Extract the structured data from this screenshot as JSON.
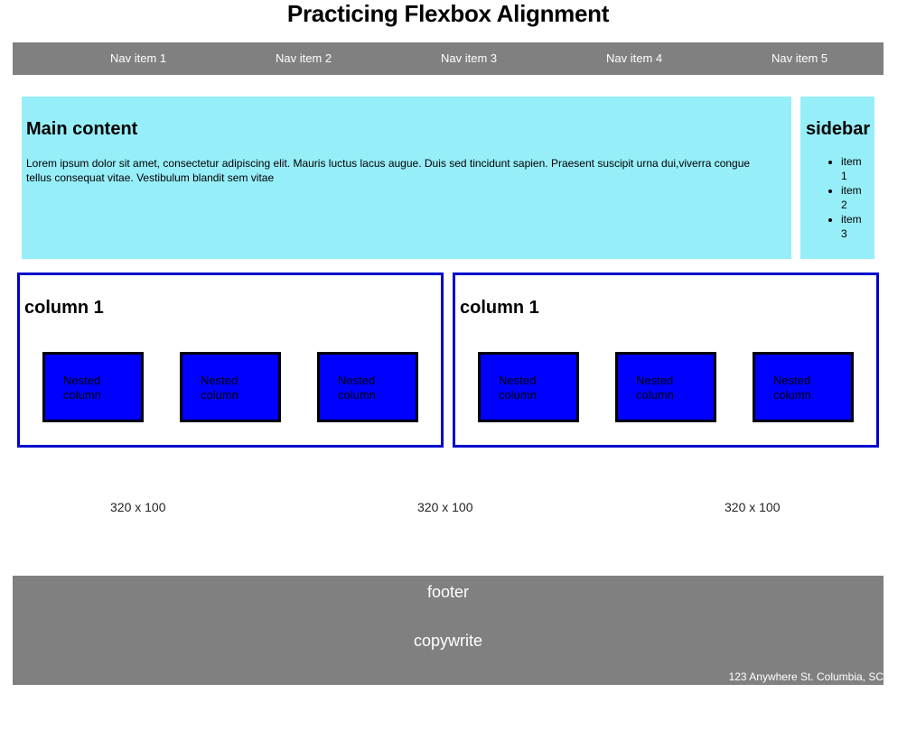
{
  "page": {
    "title": "Practicing Flexbox Alignment"
  },
  "nav": {
    "items": [
      "Nav item 1",
      "Nav item 2",
      "Nav item 3",
      "Nav item 4",
      "Nav item 5"
    ]
  },
  "main": {
    "heading": "Main content",
    "body": "Lorem ipsum dolor sit amet, consectetur adipiscing elit. Mauris luctus lacus augue. Duis sed tincidunt sapien. Praesent suscipit urna dui,viverra congue tellus consequat vitae. Vestibulum blandit sem vitae"
  },
  "sidebar": {
    "heading": "sidebar",
    "items": [
      "item 1",
      "item 2",
      "item 3"
    ]
  },
  "columns": [
    {
      "heading": "column 1",
      "nested": [
        "Nested column",
        "Nested column",
        "Nested column"
      ]
    },
    {
      "heading": "column 1",
      "nested": [
        "Nested column",
        "Nested column",
        "Nested column"
      ]
    }
  ],
  "placeholders": [
    "320 x 100",
    "320 x 100",
    "320 x 100"
  ],
  "footer": {
    "title": "footer",
    "copy": "copywrite",
    "address": "123 Anywhere St. Columbia, SC"
  },
  "colors": {
    "nav_bg": "#808080",
    "main_bg": "#96eef8",
    "column_border": "#0000cc",
    "nested_bg": "#0000ff",
    "footer_bg": "#808080"
  }
}
